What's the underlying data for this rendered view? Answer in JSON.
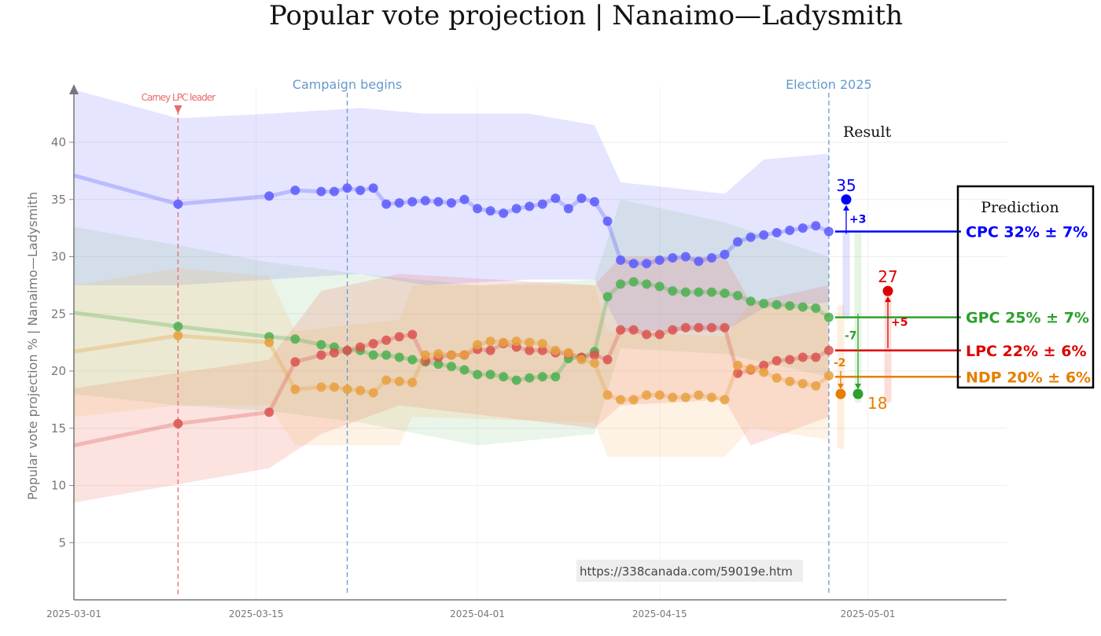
{
  "title": "Popular vote projection | Nanaimo—Ladysmith",
  "chart_data": {
    "type": "line",
    "title": "Popular vote projection | Nanaimo—Ladysmith",
    "ylabel": "Popular vote projection % | Nanaimo—Ladysmith",
    "xlabel": "",
    "xlim": [
      "2025-03-01",
      "2025-05-11"
    ],
    "ylim": [
      0,
      44.5
    ],
    "x_ticks": [
      "2025-03-01",
      "2025-03-15",
      "2025-04-01",
      "2025-04-15",
      "2025-05-01"
    ],
    "y_ticks": [
      5,
      10,
      15,
      20,
      25,
      30,
      35,
      40
    ],
    "grid": true,
    "x": [
      "2025-03-01",
      "2025-03-09",
      "2025-03-16",
      "2025-03-18",
      "2025-03-20",
      "2025-03-21",
      "2025-03-22",
      "2025-03-23",
      "2025-03-24",
      "2025-03-25",
      "2025-03-26",
      "2025-03-27",
      "2025-03-28",
      "2025-03-29",
      "2025-03-30",
      "2025-03-31",
      "2025-04-01",
      "2025-04-02",
      "2025-04-03",
      "2025-04-04",
      "2025-04-05",
      "2025-04-06",
      "2025-04-07",
      "2025-04-08",
      "2025-04-09",
      "2025-04-10",
      "2025-04-11",
      "2025-04-12",
      "2025-04-13",
      "2025-04-14",
      "2025-04-15",
      "2025-04-16",
      "2025-04-17",
      "2025-04-18",
      "2025-04-19",
      "2025-04-20",
      "2025-04-21",
      "2025-04-22",
      "2025-04-23",
      "2025-04-24",
      "2025-04-25",
      "2025-04-26",
      "2025-04-27",
      "2025-04-28"
    ],
    "series": [
      {
        "name": "CPC",
        "color": "#0000ff",
        "dot_color": "#5b5bff",
        "values": [
          37.1,
          34.6,
          35.3,
          35.8,
          35.7,
          35.7,
          36.0,
          35.8,
          36.0,
          34.6,
          34.7,
          34.8,
          34.9,
          34.8,
          34.7,
          35.0,
          34.2,
          34.0,
          33.8,
          34.2,
          34.4,
          34.6,
          35.1,
          34.2,
          35.1,
          34.8,
          33.1,
          29.7,
          29.4,
          29.4,
          29.7,
          29.9,
          30.0,
          29.6,
          29.9,
          30.2,
          31.3,
          31.7,
          31.9,
          32.1,
          32.3,
          32.5,
          32.7,
          32.2
        ],
        "band": {
          "x": [
            "2025-03-01",
            "2025-03-09",
            "2025-03-16",
            "2025-03-23",
            "2025-03-28",
            "2025-04-05",
            "2025-04-10",
            "2025-04-12",
            "2025-04-20",
            "2025-04-23",
            "2025-04-28"
          ],
          "lo": [
            27.5,
            27.5,
            28.0,
            28.5,
            27.5,
            28.0,
            28.0,
            23.5,
            23.5,
            25.5,
            26.0
          ],
          "hi": [
            44.6,
            42.1,
            42.5,
            43.0,
            42.5,
            42.5,
            41.5,
            36.5,
            35.5,
            38.5,
            39.0
          ]
        },
        "band_color": "rgba(110,110,255,0.18)"
      },
      {
        "name": "GPC",
        "color": "#2ca02c",
        "dot_color": "#4caf50",
        "values": [
          25.1,
          23.9,
          23.0,
          22.8,
          22.3,
          22.1,
          21.8,
          21.8,
          21.4,
          21.4,
          21.2,
          21.0,
          20.8,
          20.6,
          20.4,
          20.1,
          19.7,
          19.7,
          19.5,
          19.2,
          19.4,
          19.5,
          19.5,
          21.1,
          21.2,
          21.7,
          26.5,
          27.6,
          27.8,
          27.6,
          27.4,
          27.0,
          26.9,
          26.9,
          26.9,
          26.8,
          26.6,
          26.1,
          25.9,
          25.8,
          25.7,
          25.6,
          25.5,
          24.7
        ],
        "band": {
          "x": [
            "2025-03-01",
            "2025-03-09",
            "2025-03-16",
            "2025-03-23",
            "2025-04-01",
            "2025-04-10",
            "2025-04-12",
            "2025-04-20",
            "2025-04-28"
          ],
          "lo": [
            18.0,
            17.0,
            16.5,
            15.5,
            13.5,
            14.5,
            22.0,
            21.5,
            19.5
          ],
          "hi": [
            32.6,
            31.0,
            29.5,
            28.5,
            27.5,
            28.0,
            35.0,
            33.0,
            30.0
          ]
        },
        "band_color": "rgba(90,180,90,0.13)"
      },
      {
        "name": "LPC",
        "color": "#dd0000",
        "dot_color": "#d9534f",
        "values": [
          13.5,
          15.4,
          16.4,
          20.8,
          21.4,
          21.6,
          21.8,
          22.1,
          22.4,
          22.7,
          23.0,
          23.2,
          20.9,
          21.2,
          21.4,
          21.4,
          21.9,
          21.8,
          22.4,
          22.1,
          21.8,
          21.8,
          21.6,
          21.5,
          21.2,
          21.4,
          21.0,
          23.6,
          23.6,
          23.2,
          23.2,
          23.6,
          23.8,
          23.8,
          23.8,
          23.8,
          19.8,
          20.1,
          20.5,
          20.9,
          21.0,
          21.2,
          21.2,
          21.8
        ],
        "band": {
          "x": [
            "2025-03-01",
            "2025-03-16",
            "2025-03-20",
            "2025-03-26",
            "2025-04-10",
            "2025-04-12",
            "2025-04-20",
            "2025-04-22",
            "2025-04-28"
          ],
          "lo": [
            8.5,
            11.5,
            14.5,
            17.0,
            15.0,
            17.0,
            17.5,
            13.5,
            16.0
          ],
          "hi": [
            18.5,
            21.0,
            27.0,
            28.5,
            27.5,
            30.0,
            30.0,
            26.0,
            27.5
          ]
        },
        "band_color": "rgba(235,90,70,0.17)"
      },
      {
        "name": "NDP",
        "color": "#e67e00",
        "dot_color": "#e8a040",
        "values": [
          21.7,
          23.1,
          22.5,
          18.4,
          18.6,
          18.6,
          18.4,
          18.3,
          18.1,
          19.2,
          19.1,
          19.0,
          21.4,
          21.5,
          21.4,
          21.4,
          22.3,
          22.6,
          22.5,
          22.6,
          22.5,
          22.4,
          21.8,
          21.6,
          21.0,
          20.7,
          17.9,
          17.5,
          17.5,
          17.9,
          17.9,
          17.7,
          17.7,
          17.9,
          17.7,
          17.5,
          20.5,
          20.2,
          19.9,
          19.4,
          19.1,
          18.9,
          18.7,
          19.6
        ],
        "band": {
          "x": [
            "2025-03-01",
            "2025-03-09",
            "2025-03-16",
            "2025-03-18",
            "2025-03-26",
            "2025-03-27",
            "2025-04-10",
            "2025-04-11",
            "2025-04-20",
            "2025-04-22",
            "2025-04-28"
          ],
          "lo": [
            16.0,
            17.0,
            17.0,
            13.5,
            13.5,
            16.0,
            15.5,
            12.5,
            12.5,
            15.0,
            14.0
          ],
          "hi": [
            27.5,
            29.0,
            28.3,
            23.5,
            24.5,
            27.5,
            27.5,
            23.5,
            23.0,
            26.0,
            25.0
          ]
        },
        "band_color": "rgba(245,175,90,0.17)"
      }
    ],
    "events": [
      {
        "date": "2025-03-09",
        "label": "Carney LPC leader",
        "color": "#e86a6a"
      },
      {
        "date": "2025-03-22",
        "label": "Campaign begins",
        "color": "#6699cc"
      },
      {
        "date": "2025-04-28",
        "label": "Election 2025",
        "color": "#6699cc"
      }
    ],
    "result_label": "Result",
    "results": [
      {
        "party": "CPC",
        "value": 35,
        "label": "35",
        "change": "+3",
        "color": "#0000ff"
      },
      {
        "party": "LPC",
        "value": 27,
        "label": "27",
        "change": "+5",
        "color": "#dd0000"
      },
      {
        "party": "NDP",
        "value": 18,
        "label": "",
        "change": "-2",
        "color": "#e67e00"
      },
      {
        "party": "GPC",
        "value": 18,
        "label": "18",
        "change": "-7",
        "color": "#2ca02c"
      }
    ],
    "prediction_title": "Prediction",
    "predictions": [
      {
        "party": "CPC",
        "value": 32,
        "text": "CPC 32% ± 7%",
        "color": "#0000ff"
      },
      {
        "party": "GPC",
        "value": 25,
        "text": "GPC 25% ± 7%",
        "color": "#2ca02c"
      },
      {
        "party": "LPC",
        "value": 22,
        "text": "LPC 22% ± 6%",
        "color": "#dd0000"
      },
      {
        "party": "NDP",
        "value": 20,
        "text": "NDP 20% ± 6%",
        "color": "#e67e00"
      }
    ],
    "watermark": "https://338canada.com/59019e.htm"
  }
}
